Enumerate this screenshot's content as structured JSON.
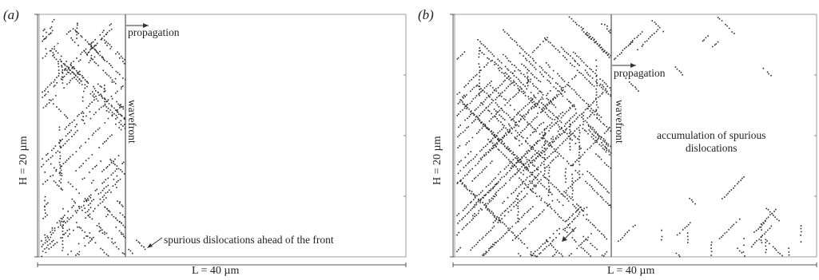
{
  "panels": [
    {
      "id": "a",
      "label": "(a)",
      "y_axis_label": "H = 20 µm",
      "x_axis_label": "L = 40 µm",
      "arrow_label": "propagation",
      "front_label": "wavefront",
      "annotation": "spurious dislocations ahead of the front"
    },
    {
      "id": "b",
      "label": "(b)",
      "y_axis_label": "H = 20 µm",
      "x_axis_label": "L = 40 µm",
      "arrow_label": "propagation",
      "front_label": "wavefront",
      "annotation_line1": "accumulation of spurious",
      "annotation_line2": "dislocations"
    }
  ],
  "colors": {
    "axis": "#555555",
    "dots": "#2a2a2a",
    "front": "#333333"
  }
}
